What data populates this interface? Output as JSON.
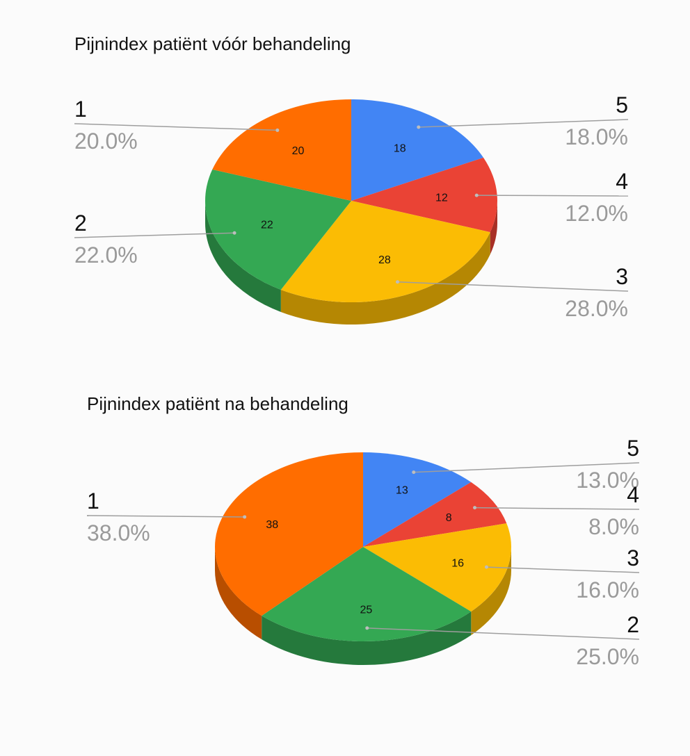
{
  "chart_data": [
    {
      "type": "pie",
      "title": "Pijnindex patiënt vóór behandeling",
      "categories": [
        "5",
        "4",
        "3",
        "2",
        "1"
      ],
      "values": [
        18,
        12,
        28,
        22,
        20
      ],
      "value_labels": [
        "18",
        "12",
        "28",
        "22",
        "20"
      ],
      "percent_labels": [
        "18.0%",
        "12.0%",
        "28.0%",
        "22.0%",
        "20.0%"
      ],
      "colors": [
        "#4285f4",
        "#ea4335",
        "#fbbc04",
        "#34a853",
        "#ff6d00"
      ],
      "style": "3d"
    },
    {
      "type": "pie",
      "title": "Pijnindex patiënt na behandeling",
      "categories": [
        "5",
        "4",
        "3",
        "2",
        "1"
      ],
      "values": [
        13,
        8,
        16,
        25,
        38
      ],
      "value_labels": [
        "13",
        "8",
        "16",
        "25",
        "38"
      ],
      "percent_labels": [
        "13.0%",
        "8.0%",
        "16.0%",
        "25.0%",
        "38.0%"
      ],
      "colors": [
        "#4285f4",
        "#ea4335",
        "#fbbc04",
        "#34a853",
        "#ff6d00"
      ],
      "style": "3d"
    }
  ]
}
